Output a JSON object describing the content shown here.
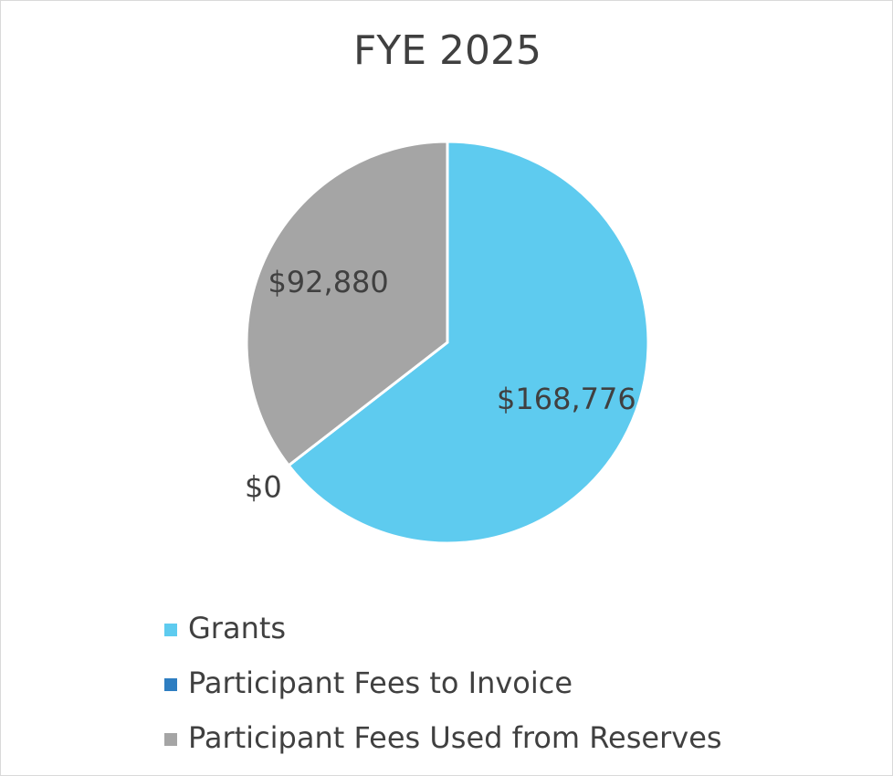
{
  "chart_data": {
    "type": "pie",
    "title": "FYE 2025",
    "categories": [
      "Grants",
      "Participant Fees to Invoice",
      "Participant Fees Used from Reserves"
    ],
    "values": [
      168776,
      0,
      92880
    ],
    "value_labels": [
      "$168,776",
      "$0",
      "$92,880"
    ],
    "colors": [
      "#5ecbef",
      "#2e7ec1",
      "#a5a5a5"
    ],
    "legend": "bottom"
  }
}
